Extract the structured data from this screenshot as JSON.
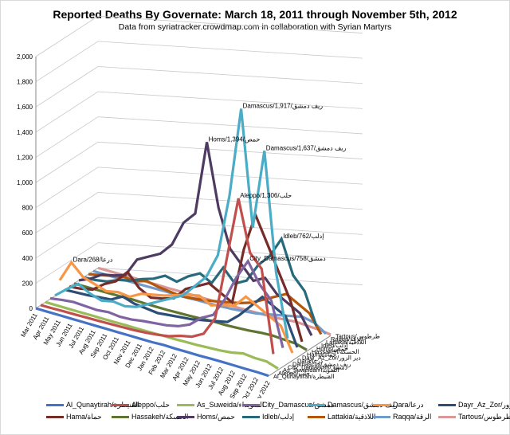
{
  "chart_data": {
    "type": "line",
    "title": "Reported Deaths By Governate: March 18, 2011 through November 5th, 2012",
    "subtitle": "Data from syriatracker.crowdmap.com  in collaboration with Syrian Martyrs",
    "ylim": [
      0,
      2000
    ],
    "yticks": [
      "0",
      "200",
      "400",
      "600",
      "800",
      "1,000",
      "1,200",
      "1,400",
      "1,600",
      "1,800",
      "2,000"
    ],
    "categories": [
      "Mar 2011",
      "Apr 2011",
      "May 2011",
      "Jun 2011",
      "Jul 2011",
      "Aug 2011",
      "Sep 2011",
      "Oct 2011",
      "Nov 2011",
      "Dec 2011",
      "Jan 2012",
      "Feb 2012",
      "Mar 2012",
      "Apr 2012",
      "May 2012",
      "Jun 2012",
      "Jul 2012",
      "Aug 2012",
      "Sep 2012",
      "Oct 2012",
      "Nov 2012"
    ],
    "series": [
      {
        "name": "Al_Qunaytirah/القنيطرة",
        "color": "#4472C4",
        "values": [
          0,
          0,
          0,
          0,
          0,
          0,
          0,
          0,
          0,
          0,
          0,
          4,
          2,
          3,
          2,
          4,
          5,
          5,
          4,
          5,
          2
        ]
      },
      {
        "name": "Aleppo/حلب",
        "color": "#C0504D",
        "values": [
          1,
          2,
          5,
          6,
          8,
          10,
          12,
          15,
          18,
          25,
          35,
          50,
          80,
          100,
          150,
          300,
          800,
          1306,
          900,
          800,
          150
        ]
      },
      {
        "name": "As_Suweida/السويداء",
        "color": "#9BBB59",
        "values": [
          0,
          0,
          0,
          0,
          1,
          1,
          1,
          2,
          2,
          3,
          5,
          5,
          8,
          10,
          15,
          20,
          30,
          50,
          40,
          40,
          10
        ]
      },
      {
        "name": "City_Damascus/دمشق",
        "color": "#8064A2",
        "values": [
          5,
          20,
          30,
          25,
          20,
          30,
          20,
          25,
          40,
          50,
          60,
          80,
          120,
          200,
          250,
          400,
          600,
          758,
          600,
          500,
          150
        ]
      },
      {
        "name": "Damascus/ريف دمشق",
        "color": "#4BACC6",
        "values": [
          3,
          80,
          150,
          100,
          70,
          90,
          80,
          100,
          150,
          200,
          250,
          300,
          400,
          500,
          700,
          1200,
          1917,
          1000,
          1637,
          700,
          200
        ]
      },
      {
        "name": "Dara/درعا",
        "color": "#F79646",
        "values": [
          100,
          268,
          180,
          150,
          120,
          140,
          130,
          180,
          200,
          220,
          250,
          280,
          300,
          250,
          280,
          300,
          400,
          350,
          300,
          250,
          60
        ]
      },
      {
        "name": "Dayr_Az_Zor/دير الزور",
        "color": "#2C4D75",
        "values": [
          0,
          5,
          10,
          20,
          30,
          80,
          50,
          40,
          30,
          40,
          50,
          60,
          80,
          100,
          120,
          200,
          300,
          400,
          350,
          300,
          80
        ]
      },
      {
        "name": "Hama/حماة",
        "color": "#772C2A",
        "values": [
          0,
          10,
          30,
          100,
          150,
          250,
          150,
          100,
          120,
          150,
          250,
          300,
          350,
          300,
          250,
          700,
          1000,
          800,
          600,
          400,
          100
        ]
      },
      {
        "name": "Hassakeh/الحسكة",
        "color": "#5F7530",
        "values": [
          0,
          1,
          2,
          3,
          5,
          8,
          5,
          5,
          5,
          8,
          10,
          15,
          20,
          20,
          25,
          30,
          40,
          45,
          40,
          35,
          10
        ]
      },
      {
        "name": "Homs/حمص",
        "color": "#4D3B62",
        "values": [
          0,
          40,
          100,
          120,
          150,
          300,
          350,
          400,
          500,
          700,
          800,
          1394,
          900,
          600,
          500,
          400,
          450,
          350,
          300,
          250,
          100
        ]
      },
      {
        "name": "Idleb/إدلب",
        "color": "#276A7C",
        "values": [
          0,
          5,
          20,
          60,
          80,
          120,
          150,
          200,
          180,
          250,
          300,
          250,
          400,
          300,
          350,
          500,
          600,
          762,
          500,
          400,
          150
        ]
      },
      {
        "name": "Lattakia/اللاذقية",
        "color": "#B65708",
        "values": [
          0,
          20,
          40,
          60,
          50,
          80,
          60,
          50,
          40,
          50,
          60,
          80,
          100,
          120,
          150,
          200,
          250,
          300,
          250,
          200,
          60
        ]
      },
      {
        "name": "Raqqa/الرقة",
        "color": "#729ACA",
        "values": [
          0,
          0,
          0,
          1,
          2,
          3,
          5,
          5,
          5,
          10,
          10,
          15,
          20,
          30,
          40,
          60,
          80,
          100,
          120,
          100,
          40
        ]
      },
      {
        "name": "Tartous/طرطوس",
        "color": "#D99795",
        "values": [
          0,
          1,
          2,
          3,
          2,
          3,
          2,
          3,
          3,
          4,
          5,
          6,
          8,
          10,
          12,
          15,
          20,
          30,
          25,
          20,
          8
        ]
      }
    ],
    "annotations": [
      "Damascus/ريف دمشق/1,917",
      "Damascus/ريف دمشق/1,637",
      "Homs/حمص/1,394",
      "Aleppo/حلب/1,306",
      "Idleb/إدلب/762",
      "City_Damascus/دمشق/758",
      "Dara/درعا/268"
    ],
    "legend_position": "bottom"
  }
}
